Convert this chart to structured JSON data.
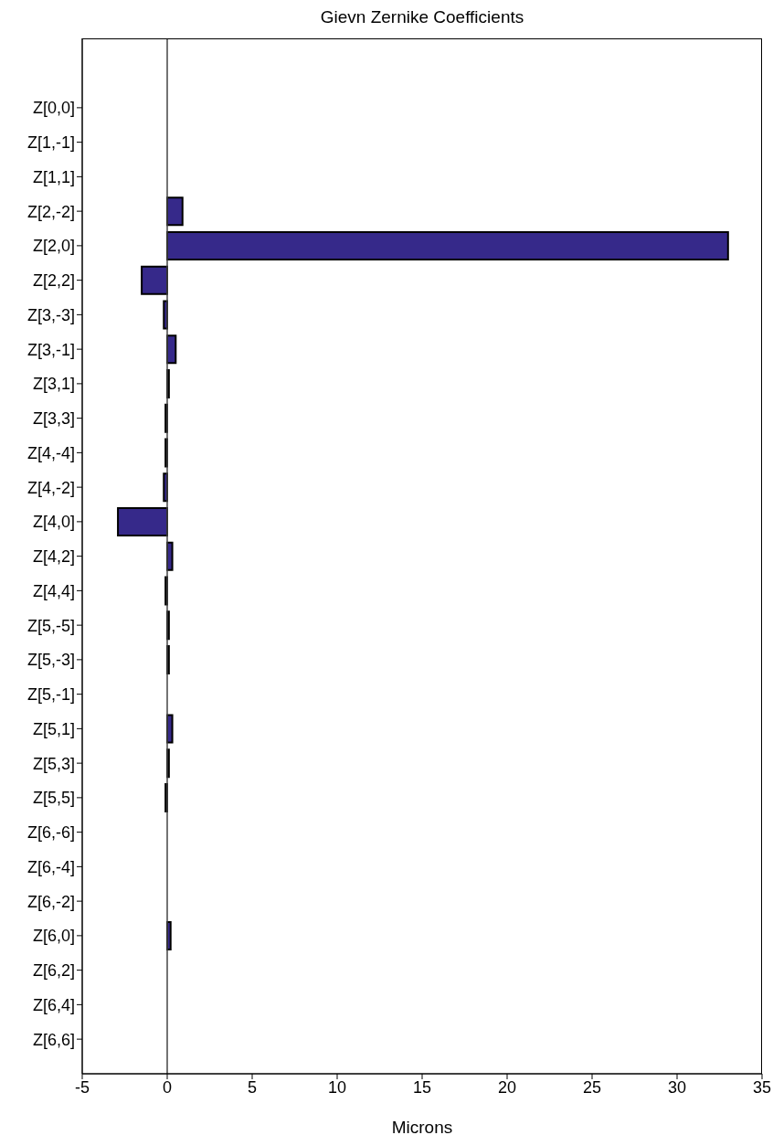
{
  "chart_data": {
    "type": "bar",
    "orientation": "horizontal",
    "title": "Gievn Zernike Coefficients",
    "xlabel": "Microns",
    "categories": [
      "Z[0,0]",
      "Z[1,-1]",
      "Z[1,1]",
      "Z[2,-2]",
      "Z[2,0]",
      "Z[2,2]",
      "Z[3,-3]",
      "Z[3,-1]",
      "Z[3,1]",
      "Z[3,3]",
      "Z[4,-4]",
      "Z[4,-2]",
      "Z[4,0]",
      "Z[4,2]",
      "Z[4,4]",
      "Z[5,-5]",
      "Z[5,-3]",
      "Z[5,-1]",
      "Z[5,1]",
      "Z[5,3]",
      "Z[5,5]",
      "Z[6,-6]",
      "Z[6,-4]",
      "Z[6,-2]",
      "Z[6,0]",
      "Z[6,2]",
      "Z[6,4]",
      "Z[6,6]"
    ],
    "values": [
      0,
      0,
      0,
      0.9,
      33,
      -1.5,
      -0.2,
      0.5,
      0.1,
      -0.1,
      -0.1,
      -0.2,
      -2.9,
      0.3,
      -0.1,
      0.1,
      0.1,
      0,
      0.3,
      0.1,
      -0.1,
      0,
      0,
      0,
      0.2,
      0,
      0,
      0
    ],
    "color": "#36298a",
    "xlim": [
      -5,
      35
    ],
    "xticks": [
      -5,
      0,
      5,
      10,
      15,
      20,
      25,
      30,
      35
    ]
  }
}
